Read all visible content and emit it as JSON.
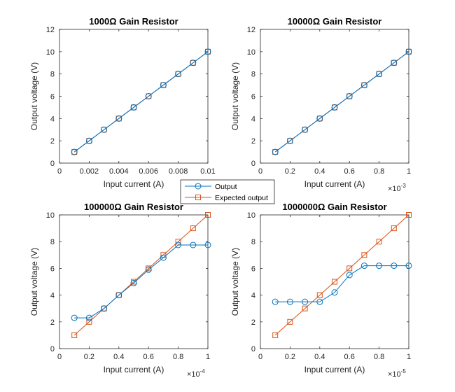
{
  "legend": {
    "entries": [
      {
        "label": "Output",
        "color": "#0072BD",
        "marker": "circle"
      },
      {
        "label": "Expected output",
        "color": "#D95319",
        "marker": "square"
      }
    ]
  },
  "chart_data": [
    {
      "type": "line",
      "title": "1000Ω Gain Resistor",
      "xlabel": "Input current (A)",
      "ylabel": "Output voltage (V)",
      "x_exponent": "",
      "xlim": [
        0,
        0.01
      ],
      "ylim": [
        0,
        12
      ],
      "xticks": [
        "0",
        "0.002",
        "0.004",
        "0.006",
        "0.008",
        "0.01"
      ],
      "yticks": [
        "0",
        "2",
        "4",
        "6",
        "8",
        "10",
        "12"
      ],
      "xtick_values": [
        0,
        0.002,
        0.004,
        0.006,
        0.008,
        0.01
      ],
      "ytick_values": [
        0,
        2,
        4,
        6,
        8,
        10,
        12
      ],
      "x": [
        0.001,
        0.002,
        0.003,
        0.004,
        0.005,
        0.006,
        0.007,
        0.008,
        0.009,
        0.01
      ],
      "series": [
        {
          "name": "Output",
          "values": [
            1,
            2,
            3,
            4,
            5,
            6,
            7,
            8,
            9,
            10
          ]
        },
        {
          "name": "Expected output",
          "values": [
            1,
            2,
            3,
            4,
            5,
            6,
            7,
            8,
            9,
            10
          ]
        }
      ]
    },
    {
      "type": "line",
      "title": "10000Ω Gain Resistor",
      "xlabel": "Input current (A)",
      "ylabel": "Output voltage (V)",
      "x_exponent": "-3",
      "xlim": [
        0,
        1
      ],
      "ylim": [
        0,
        12
      ],
      "xticks": [
        "0",
        "0.2",
        "0.4",
        "0.6",
        "0.8",
        "1"
      ],
      "yticks": [
        "0",
        "2",
        "4",
        "6",
        "8",
        "10",
        "12"
      ],
      "xtick_values": [
        0,
        0.2,
        0.4,
        0.6,
        0.8,
        1
      ],
      "ytick_values": [
        0,
        2,
        4,
        6,
        8,
        10,
        12
      ],
      "x": [
        0.1,
        0.2,
        0.3,
        0.4,
        0.5,
        0.6,
        0.7,
        0.8,
        0.9,
        1.0
      ],
      "series": [
        {
          "name": "Output",
          "values": [
            1,
            2,
            3,
            4,
            5,
            6,
            7,
            8,
            9,
            10
          ]
        },
        {
          "name": "Expected output",
          "values": [
            1,
            2,
            3,
            4,
            5,
            6,
            7,
            8,
            9,
            10
          ]
        }
      ]
    },
    {
      "type": "line",
      "title": "100000Ω Gain Resistor",
      "xlabel": "Input current (A)",
      "ylabel": "Output voltage (V)",
      "x_exponent": "-4",
      "xlim": [
        0,
        1
      ],
      "ylim": [
        0,
        10
      ],
      "xticks": [
        "0",
        "0.2",
        "0.4",
        "0.6",
        "0.8",
        "1"
      ],
      "yticks": [
        "0",
        "2",
        "4",
        "6",
        "8",
        "10"
      ],
      "xtick_values": [
        0,
        0.2,
        0.4,
        0.6,
        0.8,
        1
      ],
      "ytick_values": [
        0,
        2,
        4,
        6,
        8,
        10
      ],
      "x": [
        0.1,
        0.2,
        0.3,
        0.4,
        0.5,
        0.6,
        0.7,
        0.8,
        0.9,
        1.0
      ],
      "series": [
        {
          "name": "Output",
          "values": [
            2.3,
            2.3,
            3.0,
            4.0,
            4.9,
            5.9,
            6.8,
            7.75,
            7.75,
            7.75
          ]
        },
        {
          "name": "Expected output",
          "values": [
            1,
            2,
            3,
            4,
            5,
            6,
            7,
            8,
            9,
            10
          ]
        }
      ]
    },
    {
      "type": "line",
      "title": "1000000Ω Gain Resistor",
      "xlabel": "Input current (A)",
      "ylabel": "Output voltage (V)",
      "x_exponent": "-5",
      "xlim": [
        0,
        1
      ],
      "ylim": [
        0,
        10
      ],
      "xticks": [
        "0",
        "0.2",
        "0.4",
        "0.6",
        "0.8",
        "1"
      ],
      "yticks": [
        "0",
        "2",
        "4",
        "6",
        "8",
        "10"
      ],
      "xtick_values": [
        0,
        0.2,
        0.4,
        0.6,
        0.8,
        1
      ],
      "ytick_values": [
        0,
        2,
        4,
        6,
        8,
        10
      ],
      "x": [
        0.1,
        0.2,
        0.3,
        0.4,
        0.5,
        0.6,
        0.7,
        0.8,
        0.9,
        1.0
      ],
      "series": [
        {
          "name": "Output",
          "values": [
            3.5,
            3.5,
            3.5,
            3.5,
            4.2,
            5.5,
            6.2,
            6.2,
            6.2,
            6.2
          ]
        },
        {
          "name": "Expected output",
          "values": [
            1,
            2,
            3,
            4,
            5,
            6,
            7,
            8,
            9,
            10
          ]
        }
      ]
    }
  ]
}
